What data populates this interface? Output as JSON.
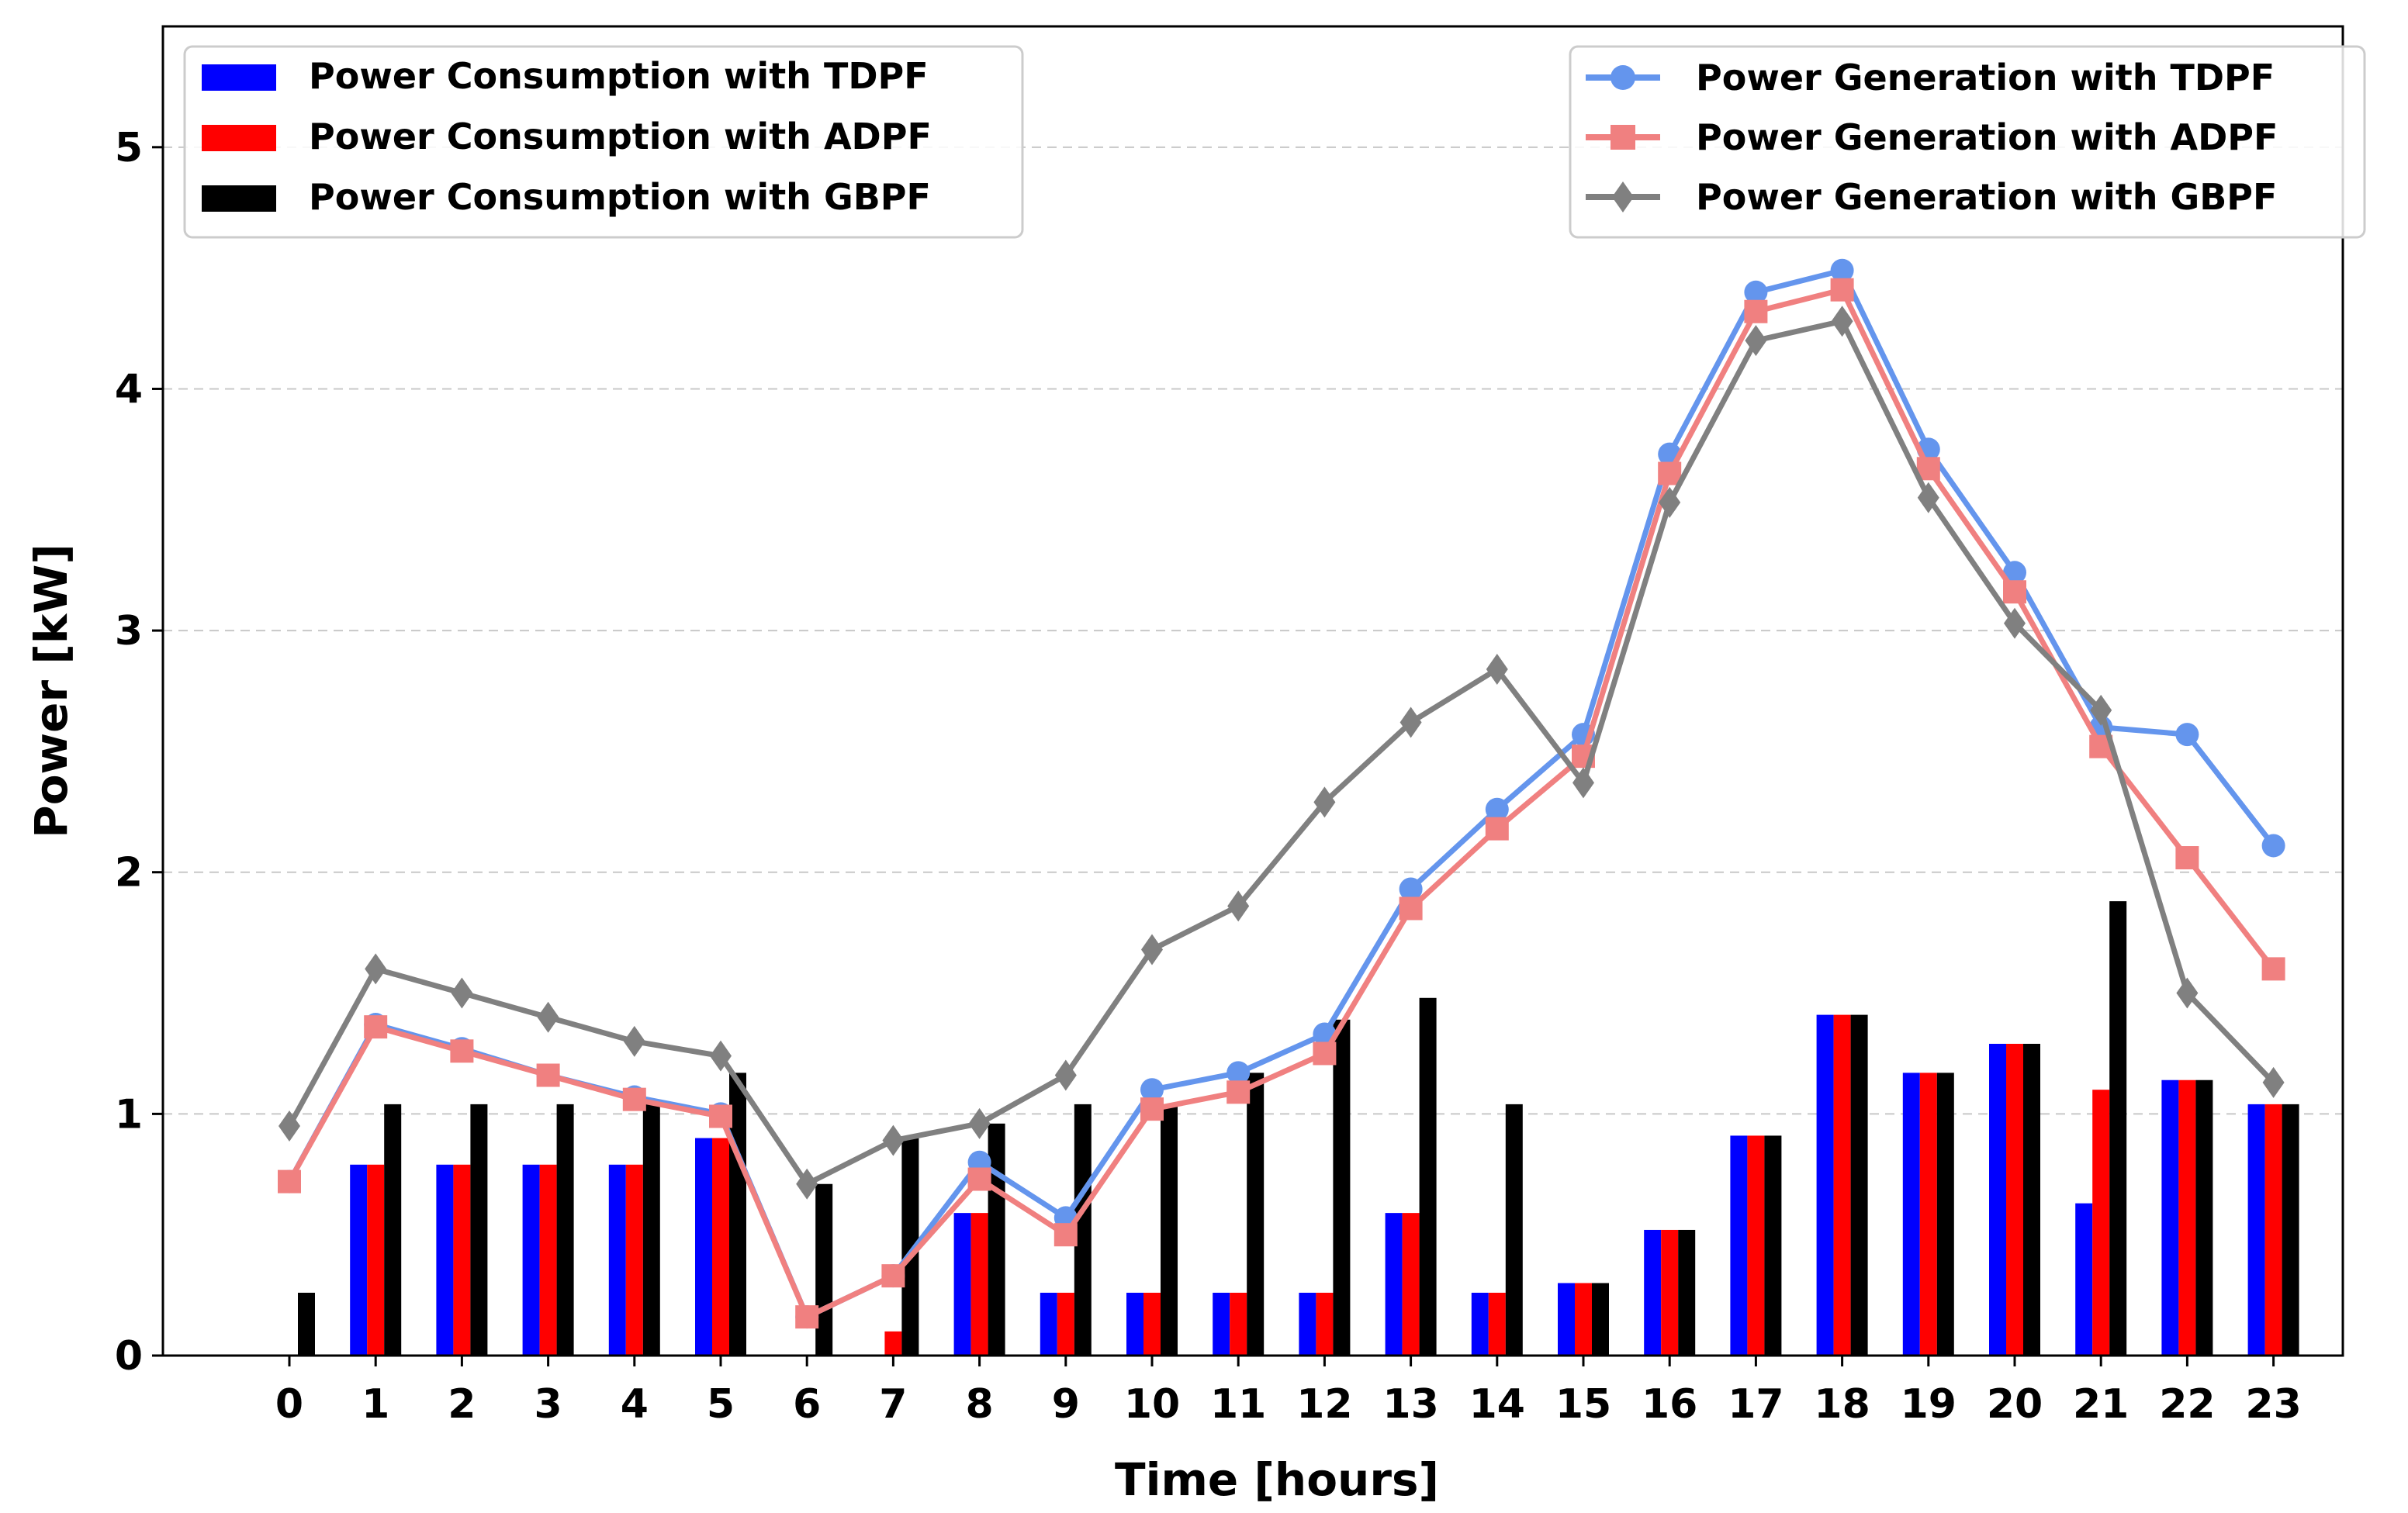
{
  "chart_data": {
    "type": "bar+line",
    "xlabel": "Time [hours]",
    "ylabel": "Power [kW]",
    "xticks": [
      "0",
      "1",
      "2",
      "3",
      "4",
      "5",
      "6",
      "7",
      "8",
      "9",
      "10",
      "11",
      "12",
      "13",
      "14",
      "15",
      "16",
      "17",
      "18",
      "19",
      "20",
      "21",
      "22",
      "23"
    ],
    "yticks": [
      "0",
      "1",
      "2",
      "3",
      "4",
      "5"
    ],
    "ylim": [
      0,
      5.5
    ],
    "grid": "horizontal dashed",
    "bar_series": [
      {
        "name": "Power Consumption with TDPF",
        "color": "#0000ff",
        "values": [
          0,
          0.79,
          0.79,
          0.79,
          0.79,
          0.9,
          0,
          0,
          0.59,
          0.26,
          0.26,
          0.26,
          0.26,
          0.59,
          0.26,
          0.3,
          0.52,
          0.91,
          1.41,
          1.17,
          1.29,
          0.63,
          1.14,
          1.04
        ]
      },
      {
        "name": "Power Consumption with ADPF",
        "color": "#ff0000",
        "values": [
          0,
          0.79,
          0.79,
          0.79,
          0.79,
          0.9,
          0,
          0.1,
          0.59,
          0.26,
          0.26,
          0.26,
          0.26,
          0.59,
          0.26,
          0.3,
          0.52,
          0.91,
          1.41,
          1.17,
          1.29,
          1.1,
          1.14,
          1.04
        ]
      },
      {
        "name": "Power Consumption with GBPF",
        "color": "#000000",
        "values": [
          0.26,
          1.04,
          1.04,
          1.04,
          1.04,
          1.17,
          0.71,
          0.9,
          0.96,
          1.04,
          1.04,
          1.17,
          1.39,
          1.48,
          1.04,
          0.3,
          0.52,
          0.91,
          1.41,
          1.17,
          1.29,
          1.88,
          1.14,
          1.04
        ]
      }
    ],
    "line_series": [
      {
        "name": "Power Generation with TDPF",
        "color": "#6495ed",
        "marker": "circle",
        "values": [
          0.72,
          1.37,
          1.27,
          1.16,
          1.07,
          1.0,
          0.16,
          0.33,
          0.8,
          0.57,
          1.1,
          1.17,
          1.33,
          1.93,
          2.26,
          2.57,
          3.73,
          4.4,
          4.49,
          3.75,
          3.24,
          2.6,
          2.57,
          2.11
        ]
      },
      {
        "name": "Power Generation with ADPF",
        "color": "#f08080",
        "marker": "square",
        "values": [
          0.72,
          1.36,
          1.26,
          1.16,
          1.06,
          0.99,
          0.16,
          0.33,
          0.73,
          0.5,
          1.02,
          1.09,
          1.25,
          1.85,
          2.18,
          2.48,
          3.65,
          4.32,
          4.41,
          3.67,
          3.16,
          2.52,
          2.06,
          1.6
        ]
      },
      {
        "name": "Power Generation with GBPF",
        "color": "#808080",
        "marker": "diamond",
        "values": [
          0.95,
          1.6,
          1.5,
          1.4,
          1.3,
          1.24,
          0.71,
          0.89,
          0.96,
          1.16,
          1.68,
          1.86,
          2.29,
          2.62,
          2.84,
          2.37,
          3.53,
          4.2,
          4.28,
          3.55,
          3.03,
          2.67,
          1.5,
          1.13
        ]
      }
    ],
    "legends": {
      "bars": {
        "placement": "top-left"
      },
      "lines": {
        "placement": "top-right"
      }
    }
  }
}
